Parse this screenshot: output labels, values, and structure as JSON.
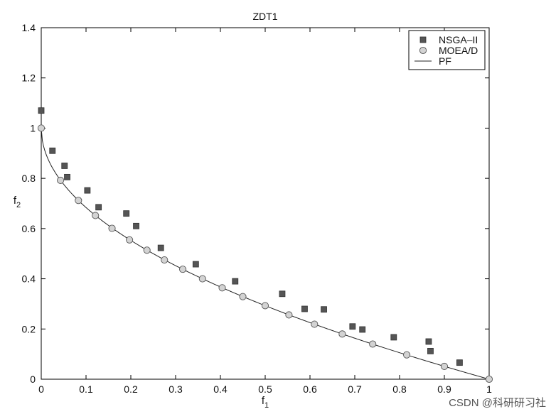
{
  "chart_data": {
    "type": "scatter",
    "title": "ZDT1",
    "xlabel": "f",
    "xlabel_sub": "1",
    "ylabel": "f",
    "ylabel_sub": "2",
    "xlim": [
      0,
      1
    ],
    "ylim": [
      0,
      1.4
    ],
    "x_ticks": [
      "0",
      "0.1",
      "0.2",
      "0.3",
      "0.4",
      "0.5",
      "0.6",
      "0.7",
      "0.8",
      "0.9",
      "1"
    ],
    "y_ticks": [
      "0",
      "0.2",
      "0.4",
      "0.6",
      "0.8",
      "1",
      "1.2",
      "1.4"
    ],
    "grid": false,
    "legend_position": "top-right",
    "series": [
      {
        "name": "NSGA–II",
        "marker": "square",
        "color": "#555555",
        "points": [
          [
            0.0,
            1.07
          ],
          [
            0.025,
            0.91
          ],
          [
            0.052,
            0.85
          ],
          [
            0.058,
            0.805
          ],
          [
            0.103,
            0.752
          ],
          [
            0.128,
            0.685
          ],
          [
            0.19,
            0.66
          ],
          [
            0.212,
            0.61
          ],
          [
            0.267,
            0.523
          ],
          [
            0.345,
            0.458
          ],
          [
            0.433,
            0.39
          ],
          [
            0.538,
            0.34
          ],
          [
            0.588,
            0.28
          ],
          [
            0.631,
            0.278
          ],
          [
            0.695,
            0.21
          ],
          [
            0.717,
            0.198
          ],
          [
            0.787,
            0.167
          ],
          [
            0.865,
            0.15
          ],
          [
            0.869,
            0.112
          ],
          [
            0.934,
            0.066
          ]
        ]
      },
      {
        "name": "MOEA/D",
        "marker": "circle",
        "color": "#d3d3d3",
        "points": [
          [
            0.0,
            1.0
          ],
          [
            0.043,
            0.792
          ],
          [
            0.083,
            0.712
          ],
          [
            0.121,
            0.652
          ],
          [
            0.158,
            0.601
          ],
          [
            0.197,
            0.555
          ],
          [
            0.236,
            0.514
          ],
          [
            0.275,
            0.475
          ],
          [
            0.316,
            0.438
          ],
          [
            0.36,
            0.4
          ],
          [
            0.404,
            0.364
          ],
          [
            0.45,
            0.329
          ],
          [
            0.5,
            0.293
          ],
          [
            0.553,
            0.256
          ],
          [
            0.61,
            0.219
          ],
          [
            0.672,
            0.18
          ],
          [
            0.74,
            0.14
          ],
          [
            0.816,
            0.097
          ],
          [
            0.9,
            0.051
          ],
          [
            1.0,
            0.0
          ]
        ]
      },
      {
        "name": "PF",
        "marker": "line",
        "color": "#222222",
        "function": "f2 = 1 - sqrt(f1)"
      }
    ]
  },
  "watermark": "CSDN @科研研习社"
}
